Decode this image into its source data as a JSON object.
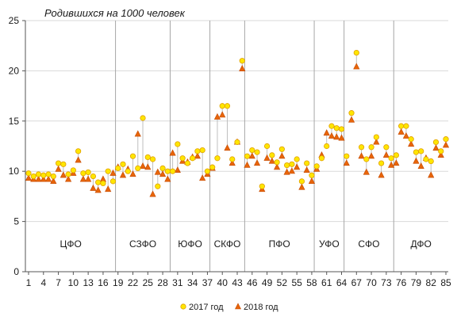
{
  "chart_data": {
    "type": "scatter",
    "title": "Родившихся на 1000 человек",
    "ylim": [
      0,
      25
    ],
    "y_ticks": [
      0,
      5,
      10,
      15,
      20,
      25
    ],
    "x_range": [
      1,
      85
    ],
    "x_tick_labels": [
      "1",
      "4",
      "7",
      "10",
      "13",
      "16",
      "19",
      "22",
      "25",
      "28",
      "31",
      "34",
      "37",
      "40",
      "43",
      "46",
      "49",
      "52",
      "55",
      "58",
      "61",
      "64",
      "67",
      "70",
      "73",
      "76",
      "79",
      "82",
      "85"
    ],
    "districts": [
      {
        "label": "ЦФО",
        "from": 1,
        "to": 18
      },
      {
        "label": "СЗФО",
        "from": 19,
        "to": 29
      },
      {
        "label": "ЮФО",
        "from": 30,
        "to": 37
      },
      {
        "label": "СКФО",
        "from": 38,
        "to": 44
      },
      {
        "label": "ПФО",
        "from": 45,
        "to": 58
      },
      {
        "label": "УФО",
        "from": 59,
        "to": 64
      },
      {
        "label": "СФО",
        "from": 65,
        "to": 74
      },
      {
        "label": "ДФО",
        "from": 75,
        "to": 85
      }
    ],
    "series": [
      {
        "name": "2017 год",
        "color": "#ffe600",
        "stroke": "#e0a000",
        "marker": "circle",
        "values": [
          9.8,
          9.5,
          9.7,
          9.6,
          9.7,
          9.5,
          10.8,
          10.7,
          9.7,
          10.1,
          12.0,
          9.8,
          9.9,
          9.5,
          8.9,
          8.8,
          10.0,
          9.0,
          10.3,
          10.7,
          10.0,
          11.5,
          10.3,
          15.3,
          11.4,
          11.2,
          8.5,
          10.3,
          10.0,
          10.0,
          12.7,
          11.3,
          10.8,
          11.3,
          12.0,
          12.1,
          10.0,
          10.4,
          11.3,
          16.5,
          16.5,
          11.2,
          12.9,
          21.0,
          11.5,
          12.1,
          11.9,
          8.5,
          12.5,
          11.6,
          10.9,
          12.2,
          10.6,
          10.7,
          11.2,
          9.0,
          10.8,
          9.6,
          10.5,
          11.3,
          12.5,
          14.5,
          14.3,
          14.2,
          11.5,
          15.8,
          21.8,
          12.4,
          11.2,
          12.4,
          13.4,
          10.8,
          12.4,
          11.3,
          11.6,
          14.5,
          14.5,
          13.2,
          11.9,
          12.0,
          11.2,
          11.0,
          12.9,
          12.0,
          13.2
        ]
      },
      {
        "name": "2018 год",
        "color": "#e8650a",
        "stroke": "#c44a00",
        "marker": "triangle",
        "values": [
          9.3,
          9.2,
          9.2,
          9.2,
          9.2,
          9.0,
          10.2,
          9.6,
          9.2,
          9.8,
          11.1,
          9.2,
          9.2,
          8.3,
          8.1,
          9.2,
          8.2,
          9.8,
          10.4,
          9.6,
          10.2,
          9.7,
          13.7,
          10.5,
          10.4,
          7.7,
          9.9,
          9.7,
          9.2,
          11.8,
          10.1,
          11.0,
          10.9,
          11.4,
          11.5,
          9.3,
          9.7,
          10.3,
          15.4,
          15.6,
          12.3,
          10.8,
          12.9,
          20.2,
          10.6,
          11.5,
          10.8,
          8.2,
          11.3,
          11.0,
          10.4,
          11.5,
          9.9,
          10.0,
          10.4,
          8.4,
          10.1,
          9.0,
          10.2,
          11.6,
          13.8,
          13.5,
          13.4,
          13.3,
          10.8,
          15.1,
          20.4,
          11.5,
          9.9,
          11.5,
          12.9,
          9.6,
          11.6,
          10.6,
          10.8,
          13.9,
          13.5,
          12.7,
          11.0,
          10.5,
          11.3,
          9.6,
          12.3,
          11.6,
          12.6
        ]
      }
    ]
  }
}
